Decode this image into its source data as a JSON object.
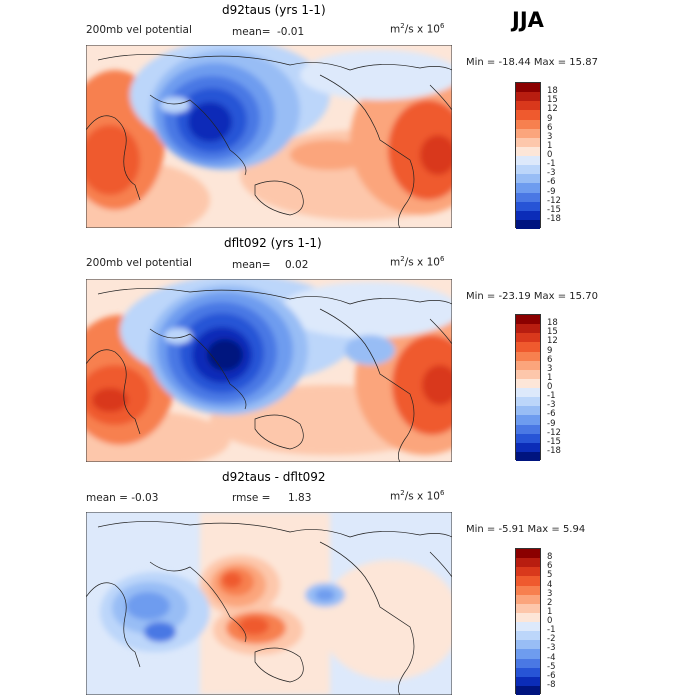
{
  "season": "JJA",
  "panels": [
    {
      "title": "d92taus (yrs 1-1)",
      "left_label": "200mb vel potential",
      "stat_label": "mean=",
      "stat_value": "-0.01",
      "units_base": "m",
      "units_exp": "2",
      "units_mid": "/s x 10",
      "units_exp2": "6",
      "min_max": "Min = -18.44 Max =   15.87",
      "colorbar_labels": [
        "18",
        "15",
        "12",
        "9",
        "6",
        "3",
        "1",
        "0",
        "-1",
        "-3",
        "-6",
        "-9",
        "-12",
        "-15",
        "-18"
      ]
    },
    {
      "title": "dflt092 (yrs 1-1)",
      "left_label": "200mb vel potential",
      "stat_label": "mean=",
      "stat_value": "0.02",
      "units_base": "m",
      "units_exp": "2",
      "units_mid": "/s x 10",
      "units_exp2": "6",
      "min_max": "Min = -23.19 Max =   15.70",
      "colorbar_labels": [
        "18",
        "15",
        "12",
        "9",
        "6",
        "3",
        "1",
        "0",
        "-1",
        "-3",
        "-6",
        "-9",
        "-12",
        "-15",
        "-18"
      ]
    },
    {
      "title": "d92taus - dflt092",
      "left_label": "mean =   -0.03",
      "stat_label": "rmse =",
      "stat_value": "1.83",
      "units_base": "m",
      "units_exp": "2",
      "units_mid": "/s x 10",
      "units_exp2": "6",
      "min_max": "Min =  -5.91 Max =   5.94",
      "colorbar_labels": [
        "8",
        "6",
        "5",
        "4",
        "3",
        "2",
        "1",
        "0",
        "-1",
        "-2",
        "-3",
        "-4",
        "-5",
        "-6",
        "-8"
      ]
    }
  ],
  "colors": {
    "scale": [
      "#8b0000",
      "#b81d10",
      "#d9381c",
      "#ef5a2e",
      "#f7804f",
      "#fba57c",
      "#fdc7ab",
      "#fde6d8",
      "#dde9fb",
      "#bcd6fa",
      "#98bdf5",
      "#6e9cef",
      "#4a78e4",
      "#2754d6",
      "#0b2cb8",
      "#00147f"
    ]
  }
}
